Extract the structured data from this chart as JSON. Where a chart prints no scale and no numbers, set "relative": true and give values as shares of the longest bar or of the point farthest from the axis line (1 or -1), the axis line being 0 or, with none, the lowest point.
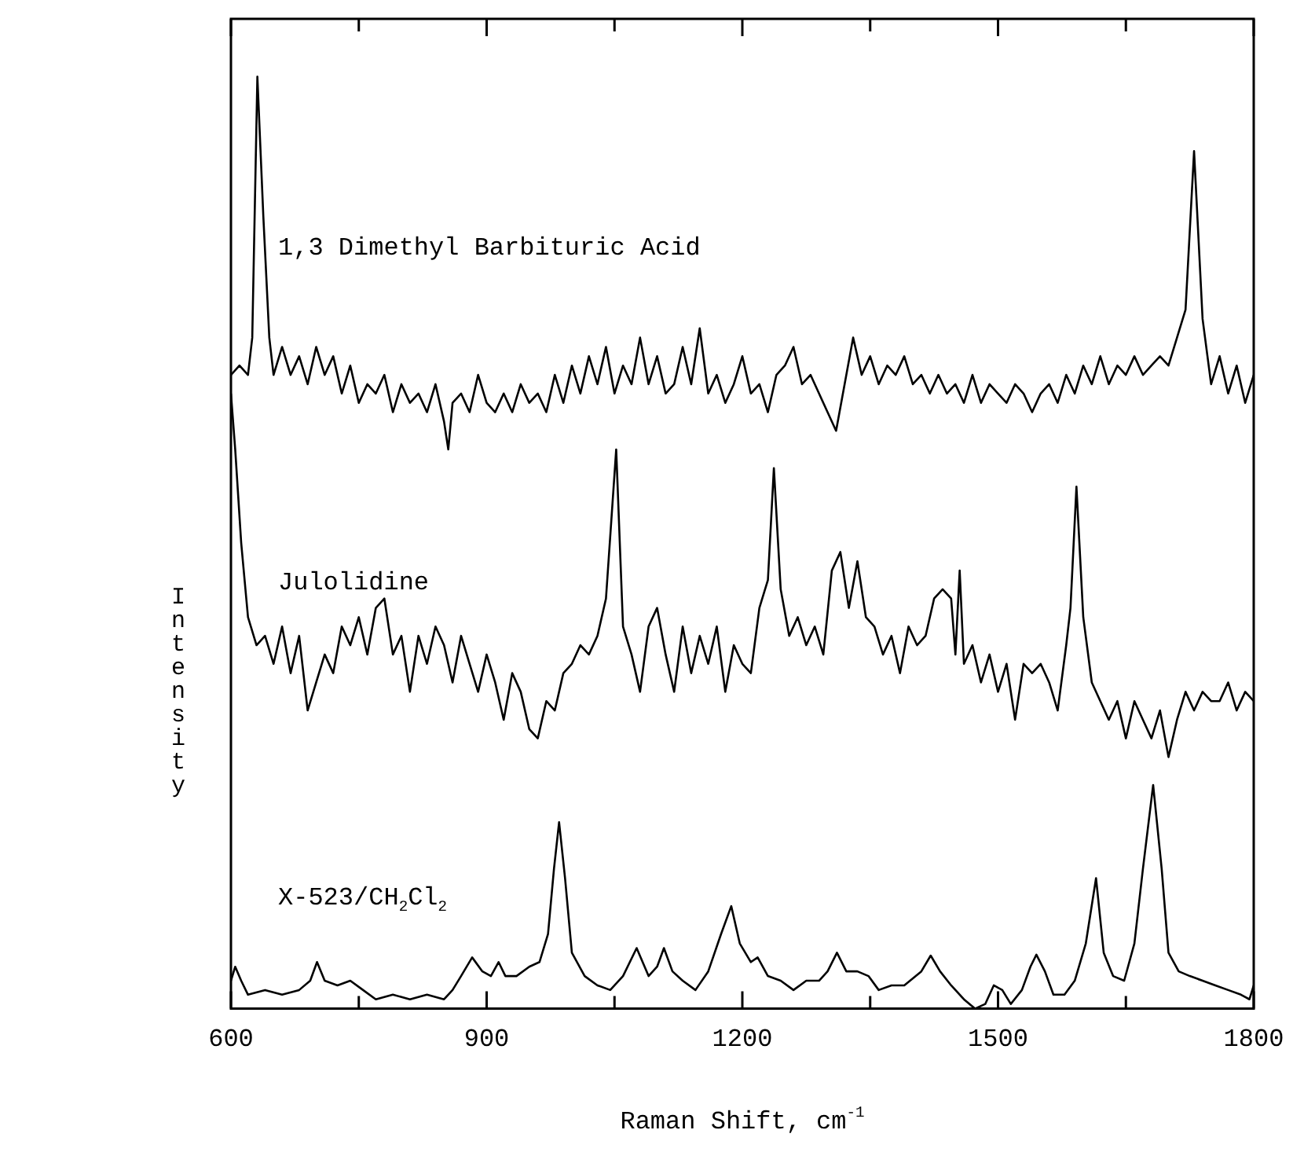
{
  "chart_data": {
    "type": "line",
    "relative": true,
    "xlabel": "Raman Shift, cm$^{-1}$",
    "ylabel": "Intensity",
    "xlim": [
      600,
      1800
    ],
    "xticks": [
      600,
      {
        "value": 750,
        "label": null
      },
      900,
      {
        "value": 1050,
        "label": null
      },
      1200,
      {
        "value": 1350,
        "label": null
      },
      1500,
      {
        "value": 1650,
        "label": null
      },
      1800
    ],
    "series": [
      {
        "name": "1,3 Dimethyl Barbituric Acid",
        "color": "#000000",
        "x": [
          600,
          610,
          620,
          625,
          631,
          638,
          645,
          650,
          660,
          670,
          680,
          690,
          700,
          710,
          720,
          730,
          740,
          750,
          760,
          770,
          780,
          790,
          800,
          810,
          820,
          830,
          840,
          850,
          855,
          860,
          870,
          880,
          890,
          900,
          910,
          920,
          930,
          940,
          950,
          960,
          970,
          980,
          990,
          1000,
          1010,
          1020,
          1030,
          1040,
          1050,
          1060,
          1070,
          1080,
          1090,
          1100,
          1110,
          1120,
          1130,
          1140,
          1150,
          1160,
          1170,
          1180,
          1190,
          1200,
          1210,
          1220,
          1230,
          1240,
          1250,
          1260,
          1270,
          1280,
          1290,
          1300,
          1310,
          1320,
          1330,
          1340,
          1350,
          1360,
          1370,
          1380,
          1390,
          1400,
          1410,
          1420,
          1430,
          1440,
          1450,
          1460,
          1470,
          1480,
          1490,
          1500,
          1510,
          1520,
          1530,
          1540,
          1550,
          1560,
          1570,
          1580,
          1590,
          1600,
          1610,
          1620,
          1630,
          1640,
          1650,
          1660,
          1670,
          1680,
          1690,
          1700,
          1710,
          1720,
          1730,
          1740,
          1750,
          1760,
          1770,
          1780,
          1790,
          1800
        ],
        "values": [
          0.68,
          0.69,
          0.68,
          0.72,
          1.0,
          0.85,
          0.72,
          0.68,
          0.71,
          0.68,
          0.7,
          0.67,
          0.71,
          0.68,
          0.7,
          0.66,
          0.69,
          0.65,
          0.67,
          0.66,
          0.68,
          0.64,
          0.67,
          0.65,
          0.66,
          0.64,
          0.67,
          0.63,
          0.6,
          0.65,
          0.66,
          0.64,
          0.68,
          0.65,
          0.64,
          0.66,
          0.64,
          0.67,
          0.65,
          0.66,
          0.64,
          0.68,
          0.65,
          0.69,
          0.66,
          0.7,
          0.67,
          0.71,
          0.66,
          0.69,
          0.67,
          0.72,
          0.67,
          0.7,
          0.66,
          0.67,
          0.71,
          0.67,
          0.73,
          0.66,
          0.68,
          0.65,
          0.67,
          0.7,
          0.66,
          0.67,
          0.64,
          0.68,
          0.69,
          0.71,
          0.67,
          0.68,
          0.66,
          0.64,
          0.62,
          0.67,
          0.72,
          0.68,
          0.7,
          0.67,
          0.69,
          0.68,
          0.7,
          0.67,
          0.68,
          0.66,
          0.68,
          0.66,
          0.67,
          0.65,
          0.68,
          0.65,
          0.67,
          0.66,
          0.65,
          0.67,
          0.66,
          0.64,
          0.66,
          0.67,
          0.65,
          0.68,
          0.66,
          0.69,
          0.67,
          0.7,
          0.67,
          0.69,
          0.68,
          0.7,
          0.68,
          0.69,
          0.7,
          0.69,
          0.72,
          0.75,
          0.92,
          0.74,
          0.67,
          0.7,
          0.66,
          0.69,
          0.65,
          0.68
        ]
      },
      {
        "name": "Julolidine",
        "color": "#000000",
        "x": [
          600,
          605,
          612,
          620,
          630,
          640,
          650,
          660,
          670,
          680,
          690,
          700,
          710,
          720,
          730,
          740,
          750,
          760,
          770,
          780,
          790,
          800,
          810,
          820,
          830,
          840,
          850,
          860,
          870,
          880,
          890,
          900,
          910,
          920,
          930,
          940,
          950,
          960,
          970,
          980,
          990,
          1000,
          1010,
          1020,
          1030,
          1040,
          1052,
          1060,
          1070,
          1080,
          1090,
          1100,
          1110,
          1120,
          1130,
          1140,
          1150,
          1160,
          1170,
          1180,
          1190,
          1200,
          1210,
          1220,
          1230,
          1237,
          1245,
          1255,
          1265,
          1275,
          1285,
          1295,
          1305,
          1315,
          1325,
          1335,
          1345,
          1355,
          1365,
          1375,
          1385,
          1395,
          1405,
          1415,
          1425,
          1435,
          1445,
          1450,
          1455,
          1460,
          1470,
          1480,
          1490,
          1500,
          1510,
          1520,
          1530,
          1540,
          1550,
          1560,
          1570,
          1580,
          1585,
          1592,
          1600,
          1610,
          1620,
          1630,
          1640,
          1650,
          1660,
          1670,
          1680,
          1690,
          1700,
          1710,
          1720,
          1730,
          1740,
          1750,
          1760,
          1770,
          1780,
          1790,
          1800
        ],
        "values": [
          0.66,
          0.6,
          0.5,
          0.42,
          0.39,
          0.4,
          0.37,
          0.41,
          0.36,
          0.4,
          0.32,
          0.35,
          0.38,
          0.36,
          0.41,
          0.39,
          0.42,
          0.38,
          0.43,
          0.44,
          0.38,
          0.4,
          0.34,
          0.4,
          0.37,
          0.41,
          0.39,
          0.35,
          0.4,
          0.37,
          0.34,
          0.38,
          0.35,
          0.31,
          0.36,
          0.34,
          0.3,
          0.29,
          0.33,
          0.32,
          0.36,
          0.37,
          0.39,
          0.38,
          0.4,
          0.44,
          0.6,
          0.41,
          0.38,
          0.34,
          0.41,
          0.43,
          0.38,
          0.34,
          0.41,
          0.36,
          0.4,
          0.37,
          0.41,
          0.34,
          0.39,
          0.37,
          0.36,
          0.43,
          0.46,
          0.58,
          0.45,
          0.4,
          0.42,
          0.39,
          0.41,
          0.38,
          0.47,
          0.49,
          0.43,
          0.48,
          0.42,
          0.41,
          0.38,
          0.4,
          0.36,
          0.41,
          0.39,
          0.4,
          0.44,
          0.45,
          0.44,
          0.38,
          0.47,
          0.37,
          0.39,
          0.35,
          0.38,
          0.34,
          0.37,
          0.31,
          0.37,
          0.36,
          0.37,
          0.35,
          0.32,
          0.39,
          0.43,
          0.56,
          0.42,
          0.35,
          0.33,
          0.31,
          0.33,
          0.29,
          0.33,
          0.31,
          0.29,
          0.32,
          0.27,
          0.31,
          0.34,
          0.32,
          0.34,
          0.33,
          0.33,
          0.35,
          0.32,
          0.34,
          0.33
        ]
      },
      {
        "name": "X-523/CH$_{2}$Cl$_{2}$",
        "color": "#000000",
        "x": [
          600,
          605,
          612,
          620,
          640,
          660,
          680,
          693,
          701,
          710,
          725,
          740,
          755,
          770,
          790,
          810,
          830,
          850,
          860,
          870,
          883,
          895,
          905,
          914,
          922,
          935,
          950,
          962,
          972,
          979,
          985,
          992,
          1000,
          1015,
          1030,
          1045,
          1060,
          1076,
          1090,
          1100,
          1108,
          1118,
          1130,
          1145,
          1160,
          1175,
          1187,
          1197,
          1210,
          1218,
          1230,
          1245,
          1260,
          1275,
          1290,
          1300,
          1311,
          1322,
          1335,
          1348,
          1360,
          1375,
          1390,
          1410,
          1421,
          1432,
          1445,
          1460,
          1473,
          1485,
          1495,
          1505,
          1515,
          1528,
          1538,
          1545,
          1555,
          1565,
          1578,
          1590,
          1603,
          1615,
          1624,
          1635,
          1648,
          1660,
          1670,
          1682,
          1692,
          1700,
          1712,
          1725,
          1740,
          1755,
          1770,
          1785,
          1795,
          1800
        ],
        "values": [
          0.03,
          0.045,
          0.03,
          0.015,
          0.02,
          0.015,
          0.02,
          0.03,
          0.05,
          0.03,
          0.025,
          0.03,
          0.02,
          0.01,
          0.015,
          0.01,
          0.015,
          0.01,
          0.02,
          0.035,
          0.055,
          0.04,
          0.035,
          0.05,
          0.035,
          0.035,
          0.045,
          0.05,
          0.08,
          0.15,
          0.2,
          0.14,
          0.06,
          0.035,
          0.025,
          0.02,
          0.035,
          0.065,
          0.035,
          0.045,
          0.065,
          0.04,
          0.03,
          0.02,
          0.04,
          0.08,
          0.11,
          0.07,
          0.05,
          0.055,
          0.035,
          0.03,
          0.02,
          0.03,
          0.03,
          0.04,
          0.06,
          0.04,
          0.04,
          0.035,
          0.02,
          0.025,
          0.025,
          0.04,
          0.057,
          0.04,
          0.025,
          0.01,
          0,
          0.005,
          0.025,
          0.02,
          0.005,
          0.02,
          0.045,
          0.058,
          0.04,
          0.015,
          0.015,
          0.03,
          0.07,
          0.14,
          0.06,
          0.035,
          0.03,
          0.07,
          0.15,
          0.24,
          0.15,
          0.06,
          0.04,
          0.035,
          0.03,
          0.025,
          0.02,
          0.015,
          0.01,
          0.025
        ]
      }
    ]
  }
}
